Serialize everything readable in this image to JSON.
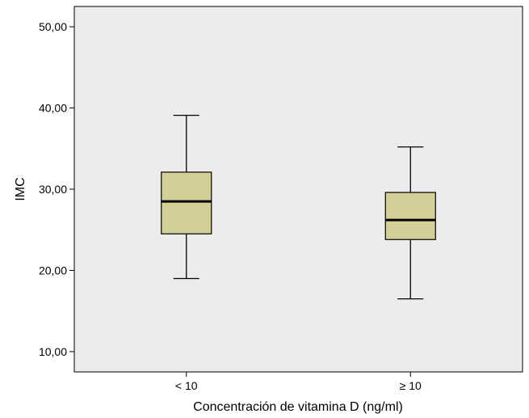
{
  "chart_data": {
    "type": "boxplot",
    "title": "",
    "xlabel": "Concentración de vitamina D (ng/ml)",
    "ylabel": "IMC",
    "ylim": [
      7.5,
      52.5
    ],
    "yticks": [
      "10,00",
      "20,00",
      "30,00",
      "40,00",
      "50,00"
    ],
    "ytick_values": [
      10,
      20,
      30,
      40,
      50
    ],
    "categories": [
      "< 10",
      "≥ 10"
    ],
    "boxes": [
      {
        "category": "< 10",
        "whisker_low": 19.0,
        "q1": 24.5,
        "median": 28.5,
        "q3": 32.1,
        "whisker_high": 39.1
      },
      {
        "category": "≥ 10",
        "whisker_low": 16.5,
        "q1": 23.8,
        "median": 26.2,
        "q3": 29.6,
        "whisker_high": 35.2
      }
    ],
    "colors": {
      "plot_bg": "#ececec",
      "box_fill": "#d4cf98",
      "stroke": "#000000"
    },
    "grid": false,
    "legend": "none"
  }
}
